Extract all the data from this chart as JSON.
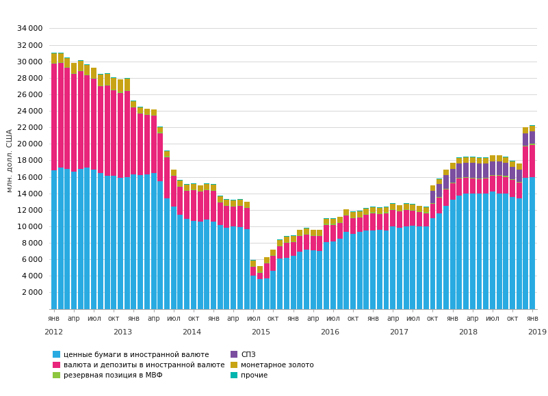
{
  "ylabel": "млн. долл. США",
  "ylim": [
    0,
    36000
  ],
  "yticks": [
    0,
    2000,
    4000,
    6000,
    8000,
    10000,
    12000,
    14000,
    16000,
    18000,
    20000,
    22000,
    24000,
    26000,
    28000,
    30000,
    32000,
    34000
  ],
  "colors": {
    "securities": "#29ABE2",
    "currency": "#E8257A",
    "imf_reserve": "#8DC63F",
    "sdrs": "#7B4EA0",
    "gold": "#C8A415",
    "other": "#00B5AD"
  },
  "legend_labels": [
    "ценные бумаги в иностранной валюте",
    "валюта и депозиты в иностранной валюте",
    "резервная позиция в МВФ",
    "СПЗ",
    "монетарное золото",
    "прочие"
  ],
  "data": {
    "securities": [
      16800,
      17100,
      17000,
      16600,
      17000,
      17100,
      16900,
      16500,
      16100,
      16100,
      15900,
      16000,
      16300,
      16200,
      16300,
      16500,
      15500,
      13400,
      12400,
      11400,
      10900,
      10700,
      10600,
      10800,
      10600,
      10200,
      9800,
      10000,
      9900,
      9700,
      4000,
      3600,
      3700,
      4600,
      6100,
      6200,
      6400,
      6900,
      7200,
      7100,
      7000,
      8100,
      8200,
      8500,
      9300,
      9100,
      9300,
      9500,
      9500,
      9600,
      9500,
      10000,
      9800,
      10000,
      10100,
      10000,
      10000,
      11000,
      11600,
      12500,
      13200,
      13700,
      14000,
      14000,
      14000,
      14000,
      14200,
      14000,
      14000,
      13600,
      13400,
      15900,
      16000
    ],
    "currency": [
      12900,
      12700,
      12200,
      11900,
      11800,
      11200,
      11000,
      10500,
      11000,
      10400,
      10300,
      10400,
      8100,
      7500,
      7200,
      6900,
      5800,
      5000,
      3700,
      3400,
      3400,
      3700,
      3600,
      3600,
      3700,
      2700,
      2700,
      2400,
      2600,
      2500,
      1100,
      800,
      1800,
      1800,
      1500,
      1800,
      1700,
      1900,
      1800,
      1700,
      1800,
      2100,
      2000,
      1900,
      2000,
      1900,
      1800,
      1900,
      2100,
      1900,
      2100,
      2000,
      2000,
      2000,
      1800,
      1700,
      1600,
      1700,
      1900,
      2000,
      2000,
      2100,
      1900,
      1800,
      1700,
      1800,
      1900,
      2100,
      2000,
      2000,
      1900,
      3800,
      3900
    ],
    "imf_reserve": [
      100,
      100,
      100,
      100,
      100,
      100,
      100,
      100,
      100,
      100,
      100,
      100,
      100,
      100,
      100,
      100,
      100,
      100,
      100,
      100,
      100,
      100,
      100,
      100,
      100,
      100,
      100,
      100,
      100,
      100,
      100,
      100,
      100,
      100,
      100,
      100,
      100,
      100,
      100,
      100,
      100,
      100,
      100,
      100,
      100,
      100,
      100,
      100,
      100,
      100,
      100,
      100,
      100,
      100,
      100,
      100,
      100,
      100,
      100,
      100,
      100,
      100,
      100,
      100,
      100,
      100,
      100,
      100,
      100,
      100,
      100,
      100,
      100
    ],
    "sdrs": [
      0,
      0,
      0,
      0,
      0,
      0,
      0,
      0,
      0,
      0,
      0,
      0,
      0,
      0,
      0,
      0,
      0,
      0,
      0,
      0,
      0,
      0,
      0,
      0,
      0,
      0,
      0,
      0,
      0,
      0,
      0,
      0,
      0,
      0,
      0,
      0,
      0,
      0,
      0,
      0,
      0,
      0,
      0,
      0,
      0,
      0,
      0,
      0,
      0,
      0,
      0,
      0,
      0,
      0,
      0,
      0,
      0,
      1500,
      1500,
      1600,
      1700,
      1700,
      1700,
      1800,
      1800,
      1700,
      1700,
      1700,
      1600,
      1500,
      1500,
      1500,
      1500
    ],
    "gold": [
      1200,
      1100,
      1100,
      1200,
      1200,
      1200,
      1200,
      1300,
      1300,
      1400,
      1500,
      1400,
      700,
      650,
      650,
      650,
      650,
      650,
      650,
      650,
      650,
      650,
      650,
      650,
      650,
      650,
      650,
      650,
      650,
      650,
      650,
      650,
      650,
      650,
      650,
      650,
      650,
      650,
      650,
      650,
      650,
      650,
      650,
      650,
      650,
      650,
      650,
      650,
      650,
      650,
      650,
      650,
      650,
      650,
      650,
      650,
      650,
      650,
      650,
      650,
      700,
      700,
      700,
      700,
      700,
      700,
      700,
      700,
      700,
      700,
      700,
      700,
      700
    ],
    "other": [
      50,
      50,
      50,
      50,
      50,
      50,
      50,
      50,
      50,
      50,
      50,
      50,
      50,
      50,
      50,
      50,
      50,
      50,
      50,
      50,
      50,
      50,
      50,
      50,
      50,
      50,
      50,
      50,
      50,
      50,
      50,
      50,
      50,
      50,
      50,
      50,
      50,
      50,
      50,
      50,
      50,
      50,
      50,
      50,
      50,
      50,
      50,
      50,
      50,
      50,
      50,
      50,
      50,
      50,
      50,
      50,
      50,
      50,
      50,
      50,
      50,
      50,
      50,
      50,
      50,
      50,
      50,
      50,
      50,
      50,
      50,
      50,
      50
    ]
  }
}
